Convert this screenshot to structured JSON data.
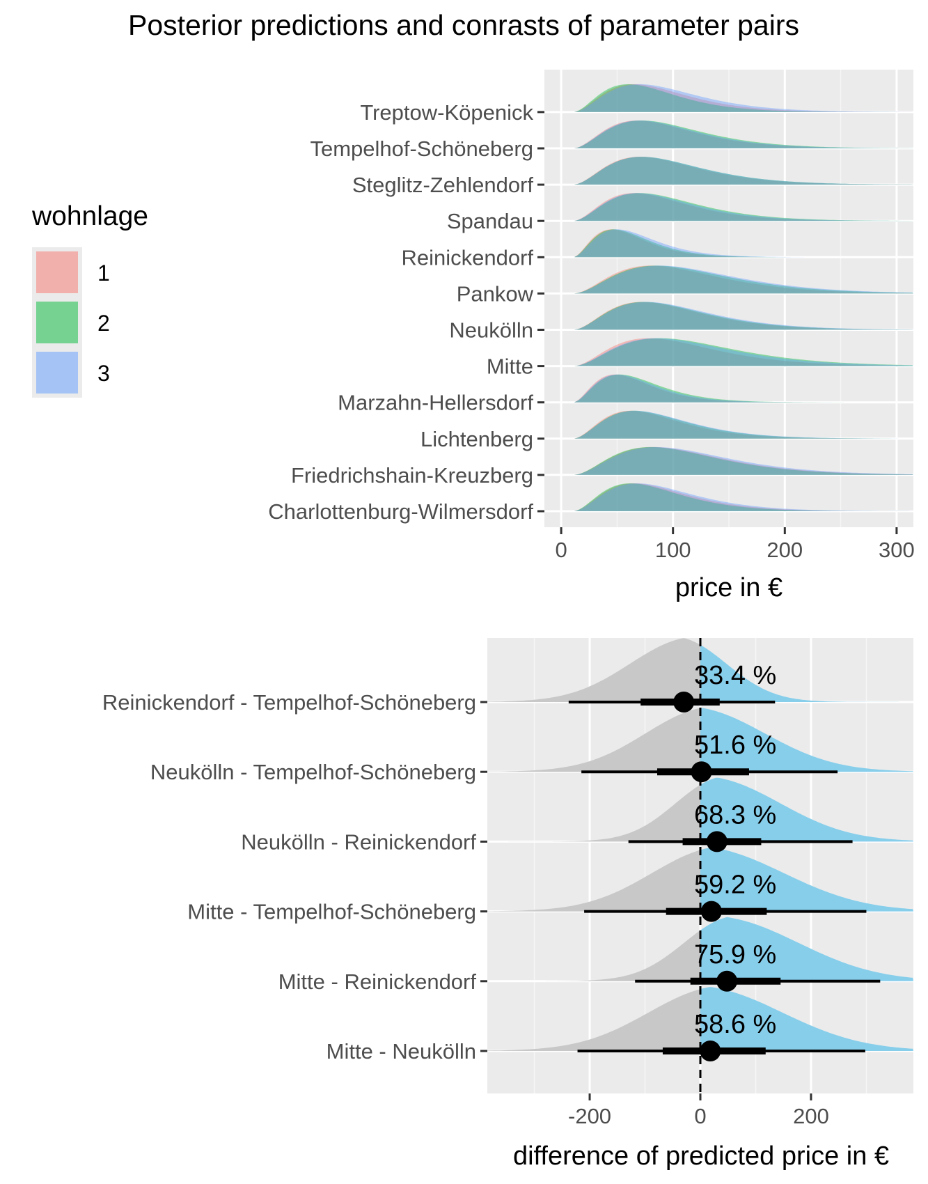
{
  "figure_title": "Posterior predictions and conrasts of parameter pairs",
  "legend": {
    "title": "wohnlage",
    "items": [
      {
        "label": "1",
        "color": "#F8766D"
      },
      {
        "label": "2",
        "color": "#00BA38"
      },
      {
        "label": "3",
        "color": "#619CFF"
      }
    ]
  },
  "chart_data": [
    {
      "type": "area",
      "subtype": "ridgeline-density",
      "xlabel": "price in €",
      "ylabel": "",
      "xlim": [
        -15,
        315
      ],
      "xticks": [
        "0",
        "100",
        "200",
        "300"
      ],
      "grid": true,
      "legend_position": "left",
      "categories": [
        "Charlottenburg-Wilmersdorf",
        "Friedrichshain-Kreuzberg",
        "Lichtenberg",
        "Marzahn-Hellersdorf",
        "Mitte",
        "Neukölln",
        "Pankow",
        "Reinickendorf",
        "Spandau",
        "Steglitz-Zehlendorf",
        "Tempelhof-Schöneberg",
        "Treptow-Köpenick"
      ],
      "series_names": [
        "1",
        "2",
        "3"
      ],
      "series_colors": [
        "#F8766D",
        "#00BA38",
        "#619CFF"
      ],
      "mode_price": [
        [
          65,
          62,
          68
        ],
        [
          82,
          80,
          85
        ],
        [
          62,
          65,
          66
        ],
        [
          48,
          52,
          50
        ],
        [
          78,
          88,
          85
        ],
        [
          72,
          74,
          76
        ],
        [
          80,
          85,
          88
        ],
        [
          45,
          47,
          50
        ],
        [
          65,
          70,
          68
        ],
        [
          70,
          72,
          72
        ],
        [
          68,
          72,
          70
        ],
        [
          65,
          60,
          70
        ]
      ]
    },
    {
      "type": "area",
      "subtype": "half-eye",
      "xlabel": "difference of predicted price in €",
      "ylabel": "",
      "xlim": [
        -385,
        385
      ],
      "xticks": [
        "-200",
        "0",
        "200"
      ],
      "reference_line": 0,
      "grid": true,
      "categories": [
        "Mitte - Neukölln",
        "Mitte - Reinickendorf",
        "Mitte - Tempelhof-Schöneberg",
        "Neukölln - Reinickendorf",
        "Neukölln - Tempelhof-Schöneberg",
        "Reinickendorf - Tempelhof-Schöneberg"
      ],
      "prob_labels": [
        "58.6 %",
        "75.9 %",
        "59.2 %",
        "68.3 %",
        "51.6 %",
        "33.4 %"
      ],
      "median": [
        18,
        48,
        20,
        30,
        2,
        -30
      ],
      "interval_66": [
        [
          -68,
          118
        ],
        [
          -18,
          145
        ],
        [
          -62,
          120
        ],
        [
          -32,
          110
        ],
        [
          -78,
          88
        ],
        [
          -108,
          35
        ]
      ],
      "interval_95": [
        [
          -222,
          298
        ],
        [
          -118,
          325
        ],
        [
          -210,
          300
        ],
        [
          -130,
          275
        ],
        [
          -215,
          248
        ],
        [
          -238,
          135
        ]
      ],
      "colors": {
        "below_zero": "#C8C8C8",
        "above_zero": "#87CEEB"
      }
    }
  ]
}
